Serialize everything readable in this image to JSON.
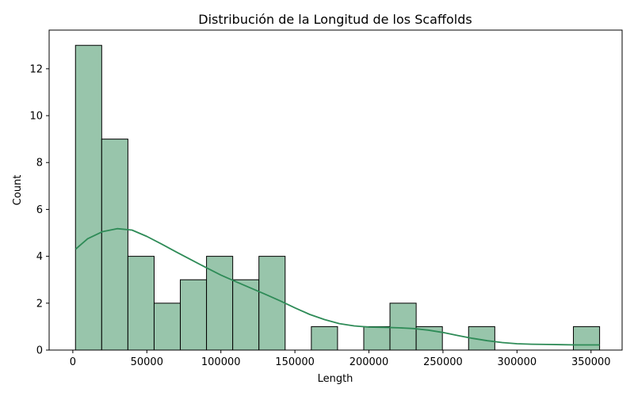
{
  "chart_data": {
    "type": "bar",
    "title": "Distribución de la Longitud de los Scaffolds",
    "xlabel": "Length",
    "ylabel": "Count",
    "xlim": [
      -16000,
      371000
    ],
    "ylim": [
      0,
      13.65
    ],
    "x_ticks": [
      0,
      50000,
      100000,
      150000,
      200000,
      250000,
      300000,
      350000
    ],
    "y_ticks": [
      0,
      2,
      4,
      6,
      8,
      10,
      12
    ],
    "bin_edges": [
      1800,
      19500,
      37200,
      54900,
      72600,
      90300,
      108000,
      125700,
      143400,
      161100,
      178800,
      196500,
      214200,
      231900,
      249600,
      267300,
      285000,
      302700,
      320400,
      338100,
      355800
    ],
    "counts": [
      13,
      9,
      4,
      2,
      3,
      4,
      3,
      4,
      0,
      1,
      0,
      1,
      2,
      1,
      0,
      1,
      0,
      0,
      0,
      1
    ],
    "bar_color": "#98c5ab",
    "edge_color": "#000000",
    "kde": {
      "color": "#2e8b57",
      "x": [
        1800,
        10000,
        20000,
        30000,
        40000,
        50000,
        60000,
        70000,
        80000,
        90000,
        100000,
        110000,
        120000,
        130000,
        140000,
        150000,
        160000,
        170000,
        180000,
        190000,
        200000,
        210000,
        220000,
        230000,
        240000,
        250000,
        260000,
        270000,
        280000,
        290000,
        300000,
        310000,
        320000,
        330000,
        340000,
        355800
      ],
      "y": [
        4.3,
        4.75,
        5.05,
        5.18,
        5.12,
        4.85,
        4.52,
        4.18,
        3.85,
        3.52,
        3.2,
        2.92,
        2.65,
        2.38,
        2.1,
        1.8,
        1.52,
        1.3,
        1.13,
        1.03,
        0.98,
        0.97,
        0.95,
        0.92,
        0.85,
        0.75,
        0.62,
        0.5,
        0.4,
        0.32,
        0.27,
        0.25,
        0.24,
        0.23,
        0.22,
        0.22
      ]
    }
  }
}
